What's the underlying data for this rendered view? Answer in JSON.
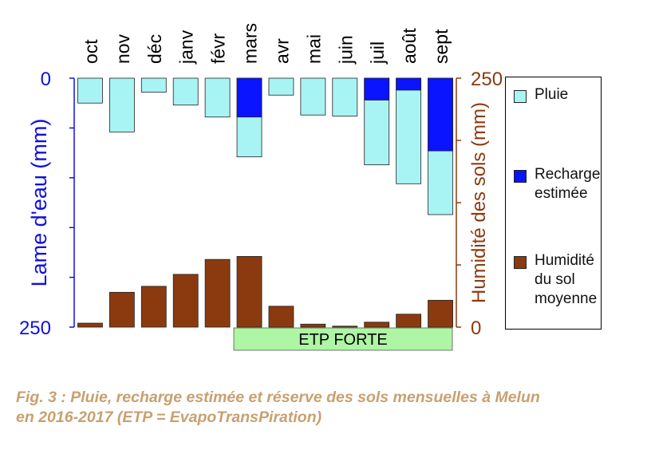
{
  "chart_data": {
    "type": "bar",
    "categories": [
      "oct",
      "nov",
      "déc",
      "janv",
      "févr",
      "mars",
      "avr",
      "mai",
      "juin",
      "juil",
      "août",
      "sept"
    ],
    "left_axis": {
      "label": "Lame d'eau (mm)",
      "range": [
        0,
        250
      ],
      "inverted": true,
      "tick_labels": [
        "0",
        "250"
      ],
      "color": "#1010e0"
    },
    "right_axis": {
      "label": "Humidité des sols (mm)",
      "range": [
        0,
        250
      ],
      "tick_labels": [
        "0",
        "250"
      ],
      "color": "#8b3a10"
    },
    "series": [
      {
        "name": "Pluie",
        "axis": "left",
        "direction": "down",
        "color": "#a8f4f4",
        "values": [
          25,
          54,
          14,
          27,
          39,
          79,
          17,
          37,
          38,
          87,
          106,
          137
        ]
      },
      {
        "name": "Recharge estimée",
        "axis": "left",
        "direction": "down",
        "color": "#0a14ff",
        "values": [
          0,
          0,
          0,
          0,
          0,
          39,
          0,
          0,
          0,
          22,
          12,
          73
        ]
      },
      {
        "name": "Humidité du sol moyenne",
        "axis": "right",
        "direction": "up",
        "color": "#8b3a10",
        "values": [
          4,
          35,
          41,
          53,
          68,
          71,
          21,
          3,
          1,
          5,
          13,
          27
        ]
      }
    ],
    "annotation": {
      "text": "ETP FORTE",
      "from": "mars",
      "to": "sept",
      "color": "#aef5a4"
    },
    "legend": {
      "placement": "right",
      "entries": [
        "Pluie",
        "Recharge\nestimée",
        "Humidité\ndu sol\nmoyenne"
      ]
    }
  },
  "caption": {
    "line1": "Fig. 3 : Pluie, recharge estimée et réserve des sols mensuelles à Melun",
    "line2": "en 2016-2017 (ETP = EvapoTransPiration)"
  }
}
